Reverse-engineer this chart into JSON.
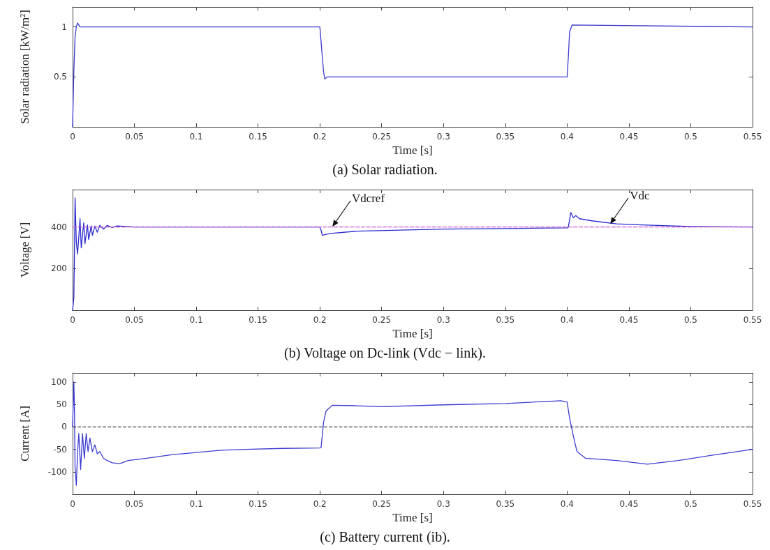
{
  "chart_data": [
    {
      "type": "line",
      "title": "(a) Solar radiation.",
      "xlabel": "Time [s]",
      "ylabel": "Solar radiation [kW/m²]",
      "xlim": [
        0,
        0.55
      ],
      "xticks": [
        0,
        0.05,
        0.1,
        0.15,
        0.2,
        0.25,
        0.3,
        0.35,
        0.4,
        0.45,
        0.5,
        0.55
      ],
      "ylim": [
        0,
        1.2
      ],
      "yticks": [
        0.5,
        1
      ],
      "grid": false,
      "marker": "none",
      "series": [
        {
          "color": "#3b3bd0",
          "x": [
            0,
            0.001,
            0.002,
            0.003,
            0.004,
            0.006,
            0.2,
            0.201,
            0.203,
            0.204,
            0.206,
            0.4,
            0.401,
            0.402,
            0.404,
            0.55
          ],
          "values": [
            0,
            0.55,
            0.9,
            1.0,
            1.04,
            1.0,
            1.0,
            0.85,
            0.55,
            0.48,
            0.5,
            0.5,
            0.7,
            0.95,
            1.02,
            1.0
          ]
        }
      ]
    },
    {
      "type": "line",
      "title": "(b) Voltage on Dc-link (Vdc − link).",
      "xlabel": "Time [s]",
      "ylabel": "Voltage [V]",
      "xlim": [
        0,
        0.55
      ],
      "xticks": [
        0,
        0.05,
        0.1,
        0.15,
        0.2,
        0.25,
        0.3,
        0.35,
        0.4,
        0.45,
        0.5,
        0.55
      ],
      "ylim": [
        0,
        580
      ],
      "yticks": [
        200,
        400
      ],
      "grid": false,
      "marker": "none",
      "annotations": [
        {
          "text": "Vdcref",
          "x": 0.21,
          "y": 400
        },
        {
          "text": "Vdc",
          "x": 0.435,
          "y": 412
        }
      ],
      "series": [
        {
          "color": "#cc55cc",
          "line_style": "dashed",
          "x": [
            0,
            0.55
          ],
          "values": [
            400,
            400
          ]
        },
        {
          "color": "#2a2ad0",
          "line_style": "solid",
          "x": [
            0,
            0.001,
            0.0015,
            0.002,
            0.003,
            0.004,
            0.005,
            0.006,
            0.007,
            0.009,
            0.01,
            0.012,
            0.013,
            0.015,
            0.016,
            0.018,
            0.02,
            0.022,
            0.025,
            0.028,
            0.032,
            0.036,
            0.05,
            0.2,
            0.201,
            0.202,
            0.205,
            0.21,
            0.23,
            0.3,
            0.35,
            0.4,
            0.401,
            0.403,
            0.405,
            0.407,
            0.41,
            0.42,
            0.44,
            0.46,
            0.5,
            0.55
          ],
          "values": [
            0,
            60,
            270,
            540,
            330,
            270,
            350,
            440,
            300,
            420,
            320,
            410,
            340,
            405,
            360,
            405,
            375,
            408,
            390,
            408,
            398,
            405,
            400,
            400,
            385,
            360,
            365,
            370,
            380,
            390,
            393,
            396,
            400,
            470,
            445,
            455,
            440,
            430,
            415,
            410,
            403,
            400
          ]
        }
      ]
    },
    {
      "type": "line",
      "title": "(c) Battery current (ib).",
      "xlabel": "Time [s]",
      "ylabel": "Current [A]",
      "xlim": [
        0,
        0.55
      ],
      "xticks": [
        0,
        0.05,
        0.1,
        0.15,
        0.2,
        0.25,
        0.3,
        0.35,
        0.4,
        0.45,
        0.5,
        0.55
      ],
      "ylim": [
        -150,
        120
      ],
      "yticks": [
        -100,
        -50,
        0,
        50,
        100
      ],
      "grid": false,
      "marker": "none",
      "ref_lines": [
        {
          "axis": "y",
          "value": 0,
          "color": "#000000",
          "line_style": "dashed"
        }
      ],
      "series": [
        {
          "color": "#3b3bd0",
          "x": [
            0,
            0.001,
            0.0015,
            0.002,
            0.003,
            0.004,
            0.005,
            0.0065,
            0.008,
            0.0095,
            0.011,
            0.0125,
            0.014,
            0.016,
            0.018,
            0.02,
            0.022,
            0.025,
            0.028,
            0.032,
            0.038,
            0.045,
            0.06,
            0.08,
            0.1,
            0.12,
            0.14,
            0.17,
            0.2,
            0.201,
            0.203,
            0.205,
            0.21,
            0.23,
            0.25,
            0.3,
            0.35,
            0.395,
            0.4,
            0.402,
            0.405,
            0.408,
            0.415,
            0.44,
            0.465,
            0.49,
            0.52,
            0.55
          ],
          "values": [
            0,
            100,
            40,
            -90,
            -130,
            -60,
            -15,
            -95,
            -15,
            -70,
            -15,
            -55,
            -25,
            -55,
            -40,
            -60,
            -55,
            -70,
            -75,
            -80,
            -82,
            -75,
            -70,
            -62,
            -57,
            -52,
            -50,
            -48,
            -47,
            -46,
            10,
            35,
            48,
            47,
            45,
            49,
            52,
            58,
            55,
            20,
            -20,
            -55,
            -70,
            -75,
            -83,
            -75,
            -62,
            -50
          ]
        }
      ]
    }
  ]
}
